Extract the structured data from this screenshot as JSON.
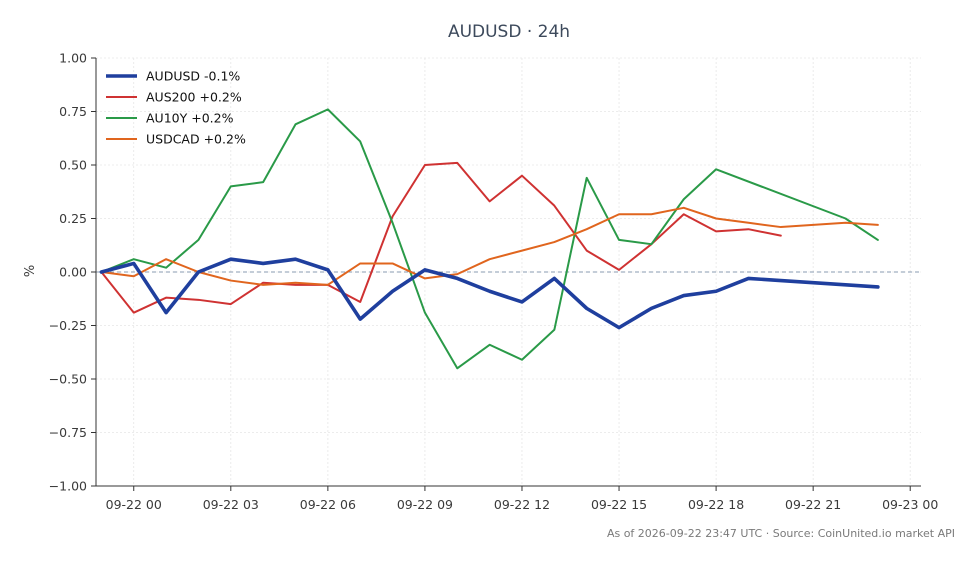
{
  "chart_data": {
    "type": "line",
    "title": "AUDUSD · 24h",
    "xlabel": "",
    "ylabel": "%",
    "ylim": [
      -1.0,
      1.0
    ],
    "xlim": [
      "2026-09-21 22:50",
      "2026-09-23 00:20"
    ],
    "x_ticks": [
      "09-22 00",
      "09-22 03",
      "09-22 06",
      "09-22 09",
      "09-22 12",
      "09-22 15",
      "09-22 18",
      "09-22 21",
      "09-23 00"
    ],
    "y_ticks": [
      "1.00",
      "0.75",
      "0.50",
      "0.25",
      "0.00",
      "−0.25",
      "−0.50",
      "−0.75",
      "−1.00"
    ],
    "grid": true,
    "zero_line": true,
    "legend_position": "top-left",
    "series": [
      {
        "name": "AUDUSD -0.1%",
        "color": "#1f3f9e",
        "emphasis": true,
        "points": [
          [
            "2026-09-21 23:00",
            0.0
          ],
          [
            "2026-09-22 00:00",
            0.04
          ],
          [
            "2026-09-22 01:00",
            -0.19
          ],
          [
            "2026-09-22 02:00",
            0.0
          ],
          [
            "2026-09-22 03:00",
            0.06
          ],
          [
            "2026-09-22 04:00",
            0.04
          ],
          [
            "2026-09-22 05:00",
            0.06
          ],
          [
            "2026-09-22 06:00",
            0.01
          ],
          [
            "2026-09-22 07:00",
            -0.22
          ],
          [
            "2026-09-22 08:00",
            -0.09
          ],
          [
            "2026-09-22 09:00",
            0.01
          ],
          [
            "2026-09-22 10:00",
            -0.03
          ],
          [
            "2026-09-22 11:00",
            -0.09
          ],
          [
            "2026-09-22 12:00",
            -0.14
          ],
          [
            "2026-09-22 13:00",
            -0.03
          ],
          [
            "2026-09-22 14:00",
            -0.17
          ],
          [
            "2026-09-22 15:00",
            -0.26
          ],
          [
            "2026-09-22 16:00",
            -0.17
          ],
          [
            "2026-09-22 17:00",
            -0.11
          ],
          [
            "2026-09-22 18:00",
            -0.09
          ],
          [
            "2026-09-22 19:00",
            -0.03
          ],
          [
            "2026-09-22 20:00",
            -0.04
          ],
          [
            "2026-09-22 22:00",
            -0.06
          ],
          [
            "2026-09-22 23:00",
            -0.07
          ]
        ]
      },
      {
        "name": "AUS200 +0.2%",
        "color": "#cf3232",
        "points": [
          [
            "2026-09-21 23:00",
            0.0
          ],
          [
            "2026-09-22 00:00",
            -0.19
          ],
          [
            "2026-09-22 01:00",
            -0.12
          ],
          [
            "2026-09-22 02:00",
            -0.13
          ],
          [
            "2026-09-22 03:00",
            -0.15
          ],
          [
            "2026-09-22 04:00",
            -0.05
          ],
          [
            "2026-09-22 05:00",
            -0.06
          ],
          [
            "2026-09-22 06:00",
            -0.06
          ],
          [
            "2026-09-22 07:00",
            -0.14
          ],
          [
            "2026-09-22 08:00",
            0.26
          ],
          [
            "2026-09-22 09:00",
            0.5
          ],
          [
            "2026-09-22 10:00",
            0.51
          ],
          [
            "2026-09-22 11:00",
            0.33
          ],
          [
            "2026-09-22 12:00",
            0.45
          ],
          [
            "2026-09-22 13:00",
            0.31
          ],
          [
            "2026-09-22 14:00",
            0.1
          ],
          [
            "2026-09-22 15:00",
            0.01
          ],
          [
            "2026-09-22 16:00",
            0.13
          ],
          [
            "2026-09-22 17:00",
            0.27
          ],
          [
            "2026-09-22 18:00",
            0.19
          ],
          [
            "2026-09-22 19:00",
            0.2
          ],
          [
            "2026-09-22 20:00",
            0.17
          ]
        ]
      },
      {
        "name": "AU10Y +0.2%",
        "color": "#2a9a48",
        "points": [
          [
            "2026-09-21 23:00",
            0.0
          ],
          [
            "2026-09-22 00:00",
            0.06
          ],
          [
            "2026-09-22 01:00",
            0.02
          ],
          [
            "2026-09-22 02:00",
            0.15
          ],
          [
            "2026-09-22 03:00",
            0.4
          ],
          [
            "2026-09-22 04:00",
            0.42
          ],
          [
            "2026-09-22 05:00",
            0.69
          ],
          [
            "2026-09-22 06:00",
            0.76
          ],
          [
            "2026-09-22 07:00",
            0.61
          ],
          [
            "2026-09-22 08:00",
            0.23
          ],
          [
            "2026-09-22 09:00",
            -0.19
          ],
          [
            "2026-09-22 10:00",
            -0.45
          ],
          [
            "2026-09-22 11:00",
            -0.34
          ],
          [
            "2026-09-22 12:00",
            -0.41
          ],
          [
            "2026-09-22 13:00",
            -0.27
          ],
          [
            "2026-09-22 14:00",
            0.44
          ],
          [
            "2026-09-22 15:00",
            0.15
          ],
          [
            "2026-09-22 16:00",
            0.13
          ],
          [
            "2026-09-22 17:00",
            0.34
          ],
          [
            "2026-09-22 18:00",
            0.48
          ],
          [
            "2026-09-22 22:00",
            0.25
          ],
          [
            "2026-09-22 23:00",
            0.15
          ]
        ]
      },
      {
        "name": "USDCAD +0.2%",
        "color": "#e0651e",
        "points": [
          [
            "2026-09-21 23:00",
            0.0
          ],
          [
            "2026-09-22 00:00",
            -0.02
          ],
          [
            "2026-09-22 01:00",
            0.06
          ],
          [
            "2026-09-22 02:00",
            0.0
          ],
          [
            "2026-09-22 03:00",
            -0.04
          ],
          [
            "2026-09-22 04:00",
            -0.06
          ],
          [
            "2026-09-22 05:00",
            -0.05
          ],
          [
            "2026-09-22 06:00",
            -0.06
          ],
          [
            "2026-09-22 07:00",
            0.04
          ],
          [
            "2026-09-22 08:00",
            0.04
          ],
          [
            "2026-09-22 09:00",
            -0.03
          ],
          [
            "2026-09-22 10:00",
            -0.01
          ],
          [
            "2026-09-22 11:00",
            0.06
          ],
          [
            "2026-09-22 12:00",
            0.1
          ],
          [
            "2026-09-22 13:00",
            0.14
          ],
          [
            "2026-09-22 14:00",
            0.2
          ],
          [
            "2026-09-22 15:00",
            0.27
          ],
          [
            "2026-09-22 16:00",
            0.27
          ],
          [
            "2026-09-22 17:00",
            0.3
          ],
          [
            "2026-09-22 18:00",
            0.25
          ],
          [
            "2026-09-22 19:00",
            0.23
          ],
          [
            "2026-09-22 20:00",
            0.21
          ],
          [
            "2026-09-22 22:00",
            0.23
          ],
          [
            "2026-09-22 23:00",
            0.22
          ]
        ]
      }
    ],
    "footnote": "As of 2026-09-22 23:47 UTC · Source: CoinUnited.io market API"
  }
}
